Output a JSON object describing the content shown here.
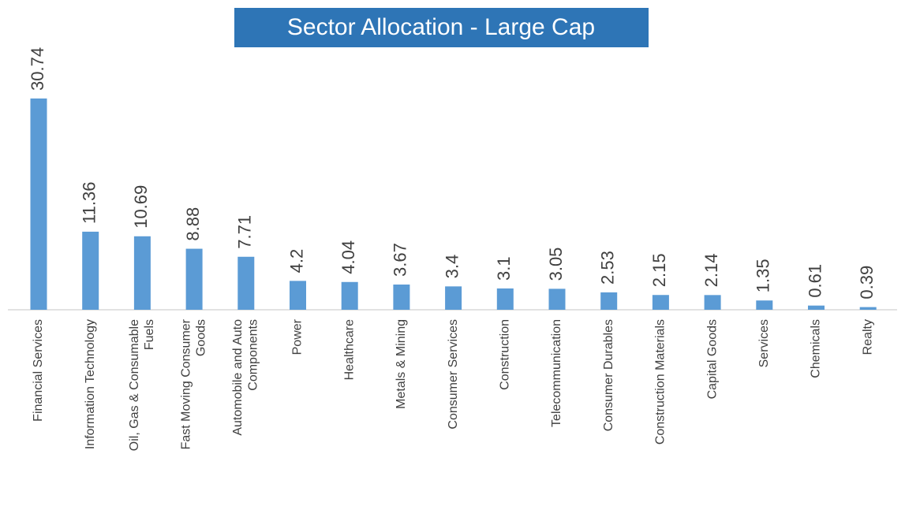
{
  "chart_data": {
    "type": "bar",
    "title": "Sector Allocation - Large Cap",
    "categories": [
      "Financial Services",
      "Information Technology",
      "Oil, Gas & Consumable Fuels",
      "Fast Moving Consumer Goods",
      "Automobile and Auto Components",
      "Power",
      "Healthcare",
      "Metals & Mining",
      "Consumer Services",
      "Construction",
      "Telecommunication",
      "Consumer Durables",
      "Construction Materials",
      "Capital Goods",
      "Services",
      "Chemicals",
      "Realty"
    ],
    "values": [
      30.74,
      11.36,
      10.69,
      8.88,
      7.71,
      4.2,
      4.04,
      3.67,
      3.4,
      3.1,
      3.05,
      2.53,
      2.15,
      2.14,
      1.35,
      0.61,
      0.39
    ],
    "color": "#5b9bd5"
  }
}
